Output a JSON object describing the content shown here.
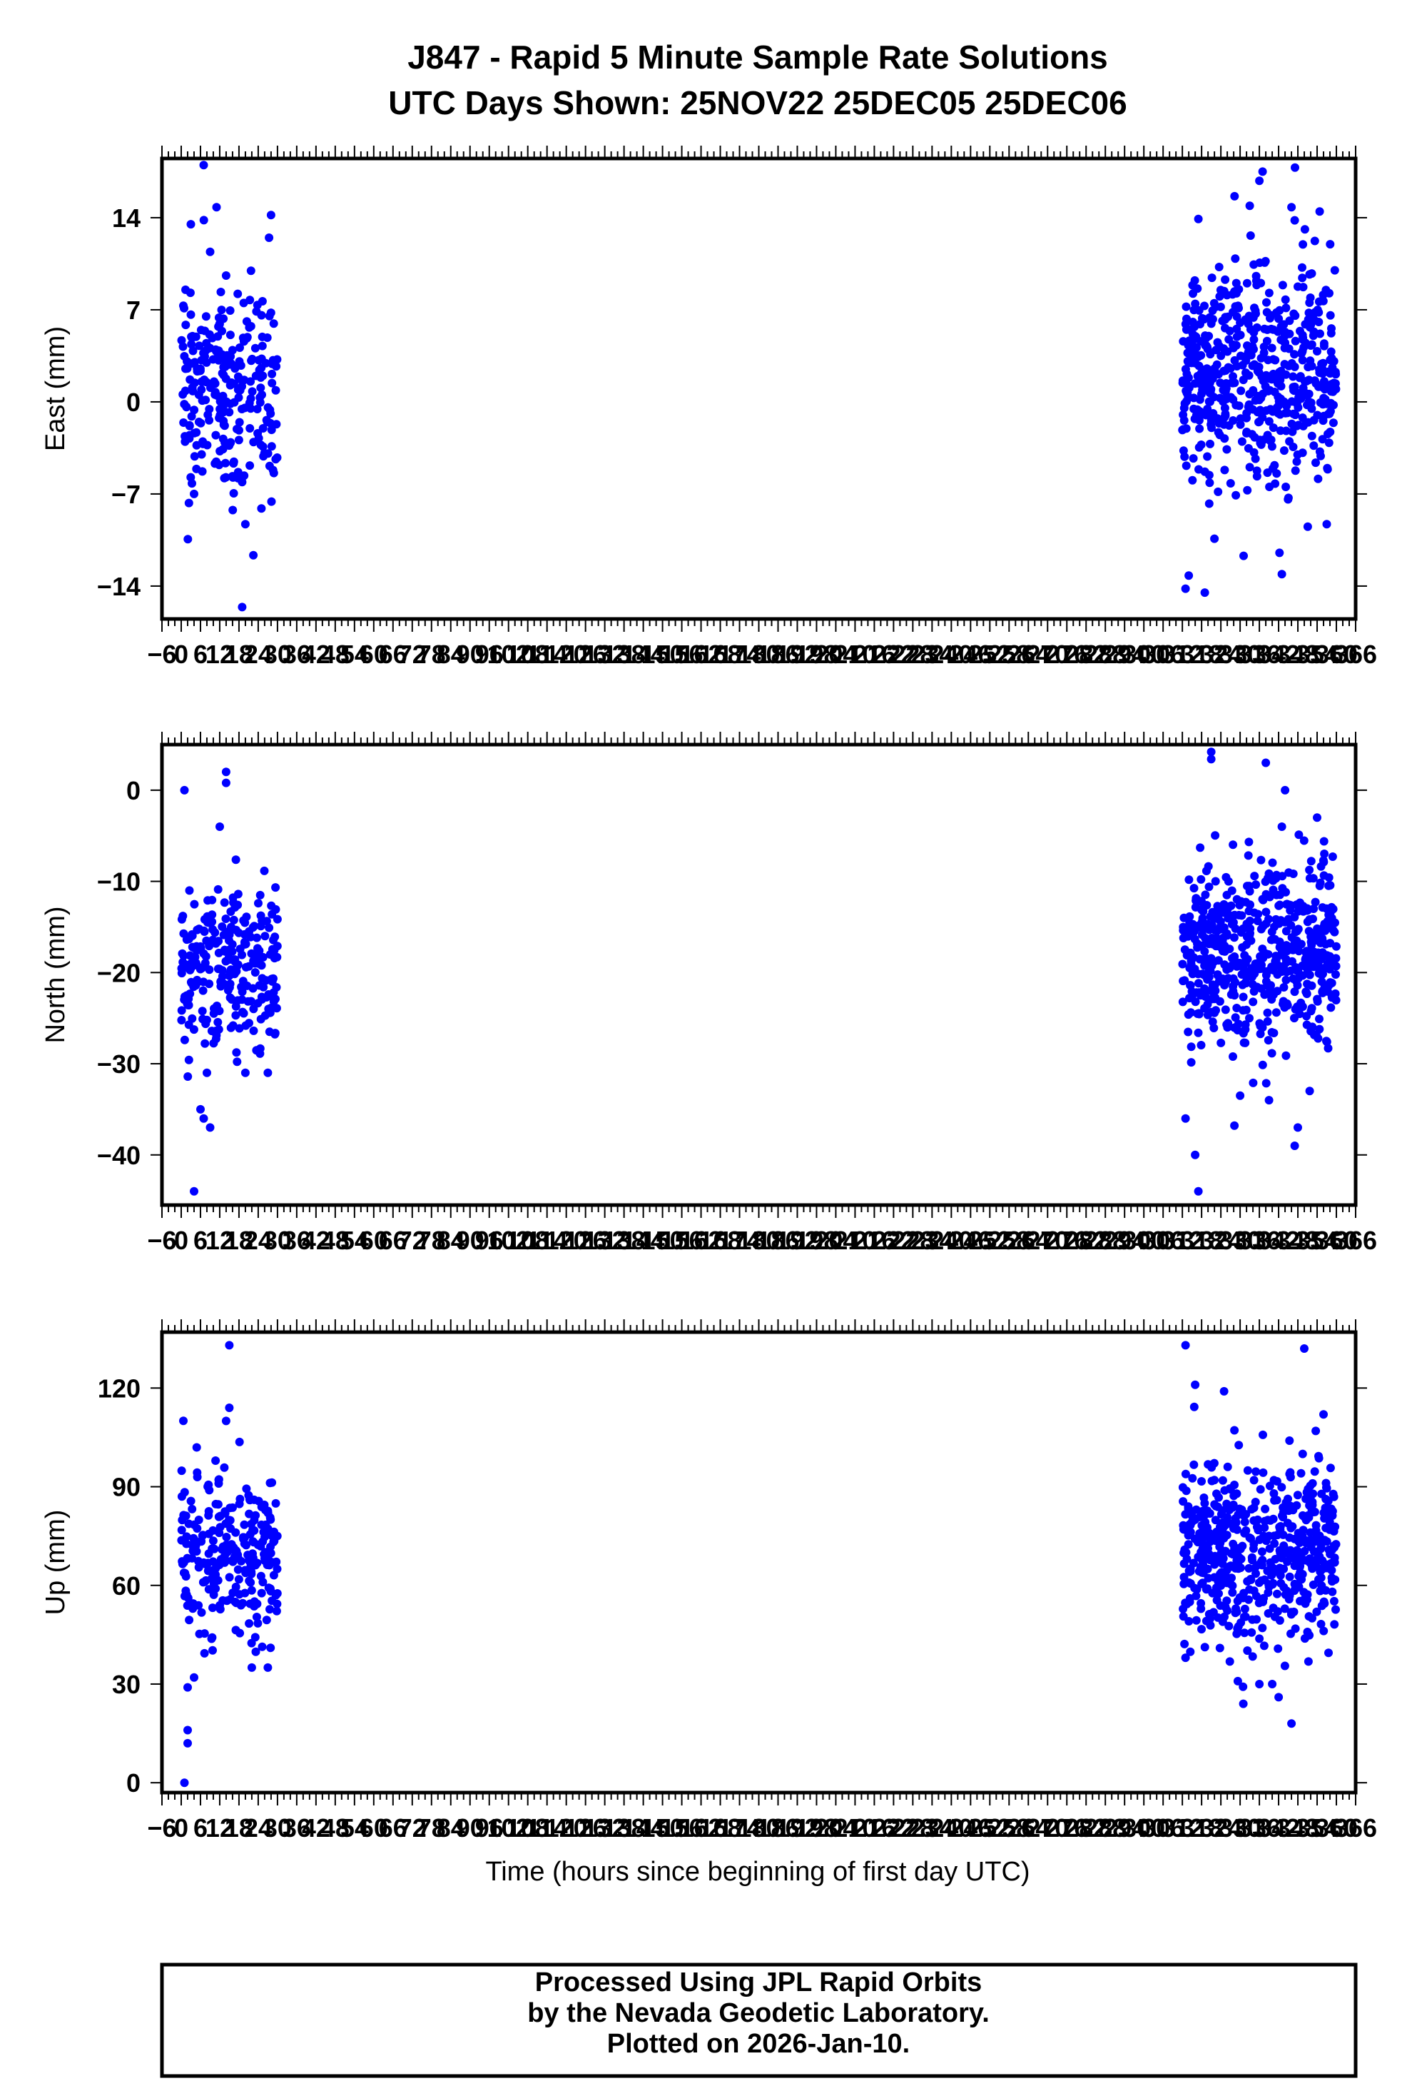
{
  "title_line1": "J847 - Rapid 5 Minute Sample Rate Solutions",
  "title_line2": "UTC Days Shown:  25NOV22 25DEC05 25DEC06",
  "xlabel": "Time (hours since beginning of first day UTC)",
  "footer": {
    "line1": "Processed Using JPL Rapid Orbits",
    "line2": "by the Nevada Geodetic Laboratory.",
    "line3": "Plotted on 2026-Jan-10."
  },
  "colors": {
    "points": "#0000ff",
    "frame": "#000000",
    "background": "#ffffff"
  },
  "chart_data": [
    {
      "type": "scatter",
      "ylabel": "East (mm)",
      "xlim": [
        -6,
        366
      ],
      "ylim": [
        -16.5,
        18.5
      ],
      "yticks": [
        14,
        7,
        0,
        -7,
        -14
      ],
      "ytick_labels": [
        "14",
        "7",
        "0",
        "−7",
        "−14"
      ],
      "xtick_labels": [
        "−6",
        "0",
        "6",
        "12",
        "18",
        "24",
        "30",
        "36",
        "42",
        "48",
        "54",
        "60",
        "66",
        "72",
        "78",
        "84",
        "90",
        "96",
        "102",
        "108",
        "114",
        "120",
        "126",
        "132",
        "138",
        "144",
        "150",
        "156",
        "162",
        "168",
        "174",
        "180",
        "186",
        "192",
        "198",
        "204",
        "210",
        "216",
        "222",
        "228",
        "234",
        "240",
        "246",
        "252",
        "258",
        "264",
        "270",
        "276",
        "282",
        "288",
        "294",
        "300",
        "306",
        "312",
        "318",
        "324",
        "330",
        "336",
        "342",
        "348",
        "354",
        "360",
        "366"
      ],
      "clusters": [
        {
          "x_range": [
            0,
            30
          ],
          "center": 1.0,
          "spread": 3.8,
          "n": 260,
          "outliers": [
            [
              3,
              13.5
            ],
            [
              7,
              18.0
            ],
            [
              11,
              14.8
            ],
            [
              28,
              14.2
            ],
            [
              20,
              -9.3
            ],
            [
              19,
              -15.6
            ],
            [
              25,
              -8.1
            ],
            [
              9,
              11.4
            ],
            [
              4,
              -7.0
            ],
            [
              14,
              9.6
            ]
          ]
        },
        {
          "x_range": [
            312,
            360
          ],
          "center": 2.2,
          "spread": 4.1,
          "n": 560,
          "outliers": [
            [
              313,
              -14.2
            ],
            [
              314,
              -13.2
            ],
            [
              319,
              -14.5
            ],
            [
              317,
              13.9
            ],
            [
              336,
              16.8
            ],
            [
              337,
              17.5
            ],
            [
              343,
              -13.1
            ],
            [
              346,
              14.8
            ],
            [
              347,
              13.8
            ],
            [
              333,
              14.9
            ],
            [
              357,
              -9.3
            ],
            [
              322,
              -10.4
            ]
          ]
        }
      ]
    },
    {
      "type": "scatter",
      "ylabel": "North (mm)",
      "xlim": [
        -6,
        366
      ],
      "ylim": [
        -45.5,
        5
      ],
      "yticks": [
        0,
        -10,
        -20,
        -30,
        -40
      ],
      "ytick_labels": [
        "0",
        "−10",
        "−20",
        "−30",
        "−40"
      ],
      "xtick_labels": [
        "−6",
        "0",
        "6",
        "12",
        "18",
        "24",
        "30",
        "36",
        "42",
        "48",
        "54",
        "60",
        "66",
        "72",
        "78",
        "84",
        "90",
        "96",
        "102",
        "108",
        "114",
        "120",
        "126",
        "132",
        "138",
        "144",
        "150",
        "156",
        "162",
        "168",
        "174",
        "180",
        "186",
        "192",
        "198",
        "204",
        "210",
        "216",
        "222",
        "228",
        "234",
        "240",
        "246",
        "252",
        "258",
        "264",
        "270",
        "276",
        "282",
        "288",
        "294",
        "300",
        "306",
        "312",
        "318",
        "324",
        "330",
        "336",
        "342",
        "348",
        "354",
        "360",
        "366"
      ],
      "clusters": [
        {
          "x_range": [
            0,
            30
          ],
          "center": -20.0,
          "spread": 4.6,
          "n": 260,
          "outliers": [
            [
              1,
              0.0
            ],
            [
              4,
              -44.0
            ],
            [
              7,
              -36.0
            ],
            [
              9,
              -37.0
            ],
            [
              14,
              2.0
            ],
            [
              14,
              0.8
            ],
            [
              6,
              -35.0
            ],
            [
              12,
              -4.0
            ],
            [
              8,
              -31.0
            ],
            [
              27,
              -31.0
            ],
            [
              20,
              -31.0
            ]
          ]
        },
        {
          "x_range": [
            312,
            360
          ],
          "center": -18.0,
          "spread": 5.0,
          "n": 560,
          "outliers": [
            [
              317,
              -44.0
            ],
            [
              316,
              -40.0
            ],
            [
              313,
              -36.0
            ],
            [
              321,
              4.2
            ],
            [
              321,
              3.4
            ],
            [
              330,
              -33.5
            ],
            [
              339,
              -34.0
            ],
            [
              338,
              3.0
            ],
            [
              344,
              0.0
            ],
            [
              347,
              -39.0
            ],
            [
              348,
              -37.0
            ],
            [
              354,
              -3.0
            ],
            [
              343,
              -4.0
            ]
          ]
        }
      ]
    },
    {
      "type": "scatter",
      "ylabel": "Up (mm)",
      "xlim": [
        -6,
        366
      ],
      "ylim": [
        -3,
        137
      ],
      "yticks": [
        120,
        90,
        60,
        30,
        0
      ],
      "ytick_labels": [
        "120",
        "90",
        "60",
        "30",
        "0"
      ],
      "xtick_labels": [
        "−6",
        "0",
        "6",
        "12",
        "18",
        "24",
        "30",
        "36",
        "42",
        "48",
        "54",
        "60",
        "66",
        "72",
        "78",
        "84",
        "90",
        "96",
        "102",
        "108",
        "114",
        "120",
        "126",
        "132",
        "138",
        "144",
        "150",
        "156",
        "162",
        "168",
        "174",
        "180",
        "186",
        "192",
        "198",
        "204",
        "210",
        "216",
        "222",
        "228",
        "234",
        "240",
        "246",
        "252",
        "258",
        "264",
        "270",
        "276",
        "282",
        "288",
        "294",
        "300",
        "306",
        "312",
        "318",
        "324",
        "330",
        "336",
        "342",
        "348",
        "354",
        "360",
        "366"
      ],
      "clusters": [
        {
          "x_range": [
            0,
            30
          ],
          "center": 71.0,
          "spread": 12.0,
          "n": 260,
          "outliers": [
            [
              1,
              0.0
            ],
            [
              2,
              12.0
            ],
            [
              2,
              16.0
            ],
            [
              2,
              29.0
            ],
            [
              4,
              32.0
            ],
            [
              15,
              133.0
            ],
            [
              15,
              114.0
            ],
            [
              14,
              110.0
            ],
            [
              22,
              35.0
            ],
            [
              27,
              35.0
            ]
          ]
        },
        {
          "x_range": [
            312,
            360
          ],
          "center": 70.0,
          "spread": 13.0,
          "n": 560,
          "outliers": [
            [
              313,
              133.0
            ],
            [
              316,
              121.0
            ],
            [
              325,
              119.0
            ],
            [
              331,
              24.0
            ],
            [
              340,
              30.0
            ],
            [
              342,
              26.0
            ],
            [
              346,
              18.0
            ],
            [
              350,
              132.0
            ],
            [
              313,
              38.0
            ],
            [
              356,
              112.0
            ],
            [
              336,
              30.0
            ]
          ]
        }
      ]
    }
  ]
}
